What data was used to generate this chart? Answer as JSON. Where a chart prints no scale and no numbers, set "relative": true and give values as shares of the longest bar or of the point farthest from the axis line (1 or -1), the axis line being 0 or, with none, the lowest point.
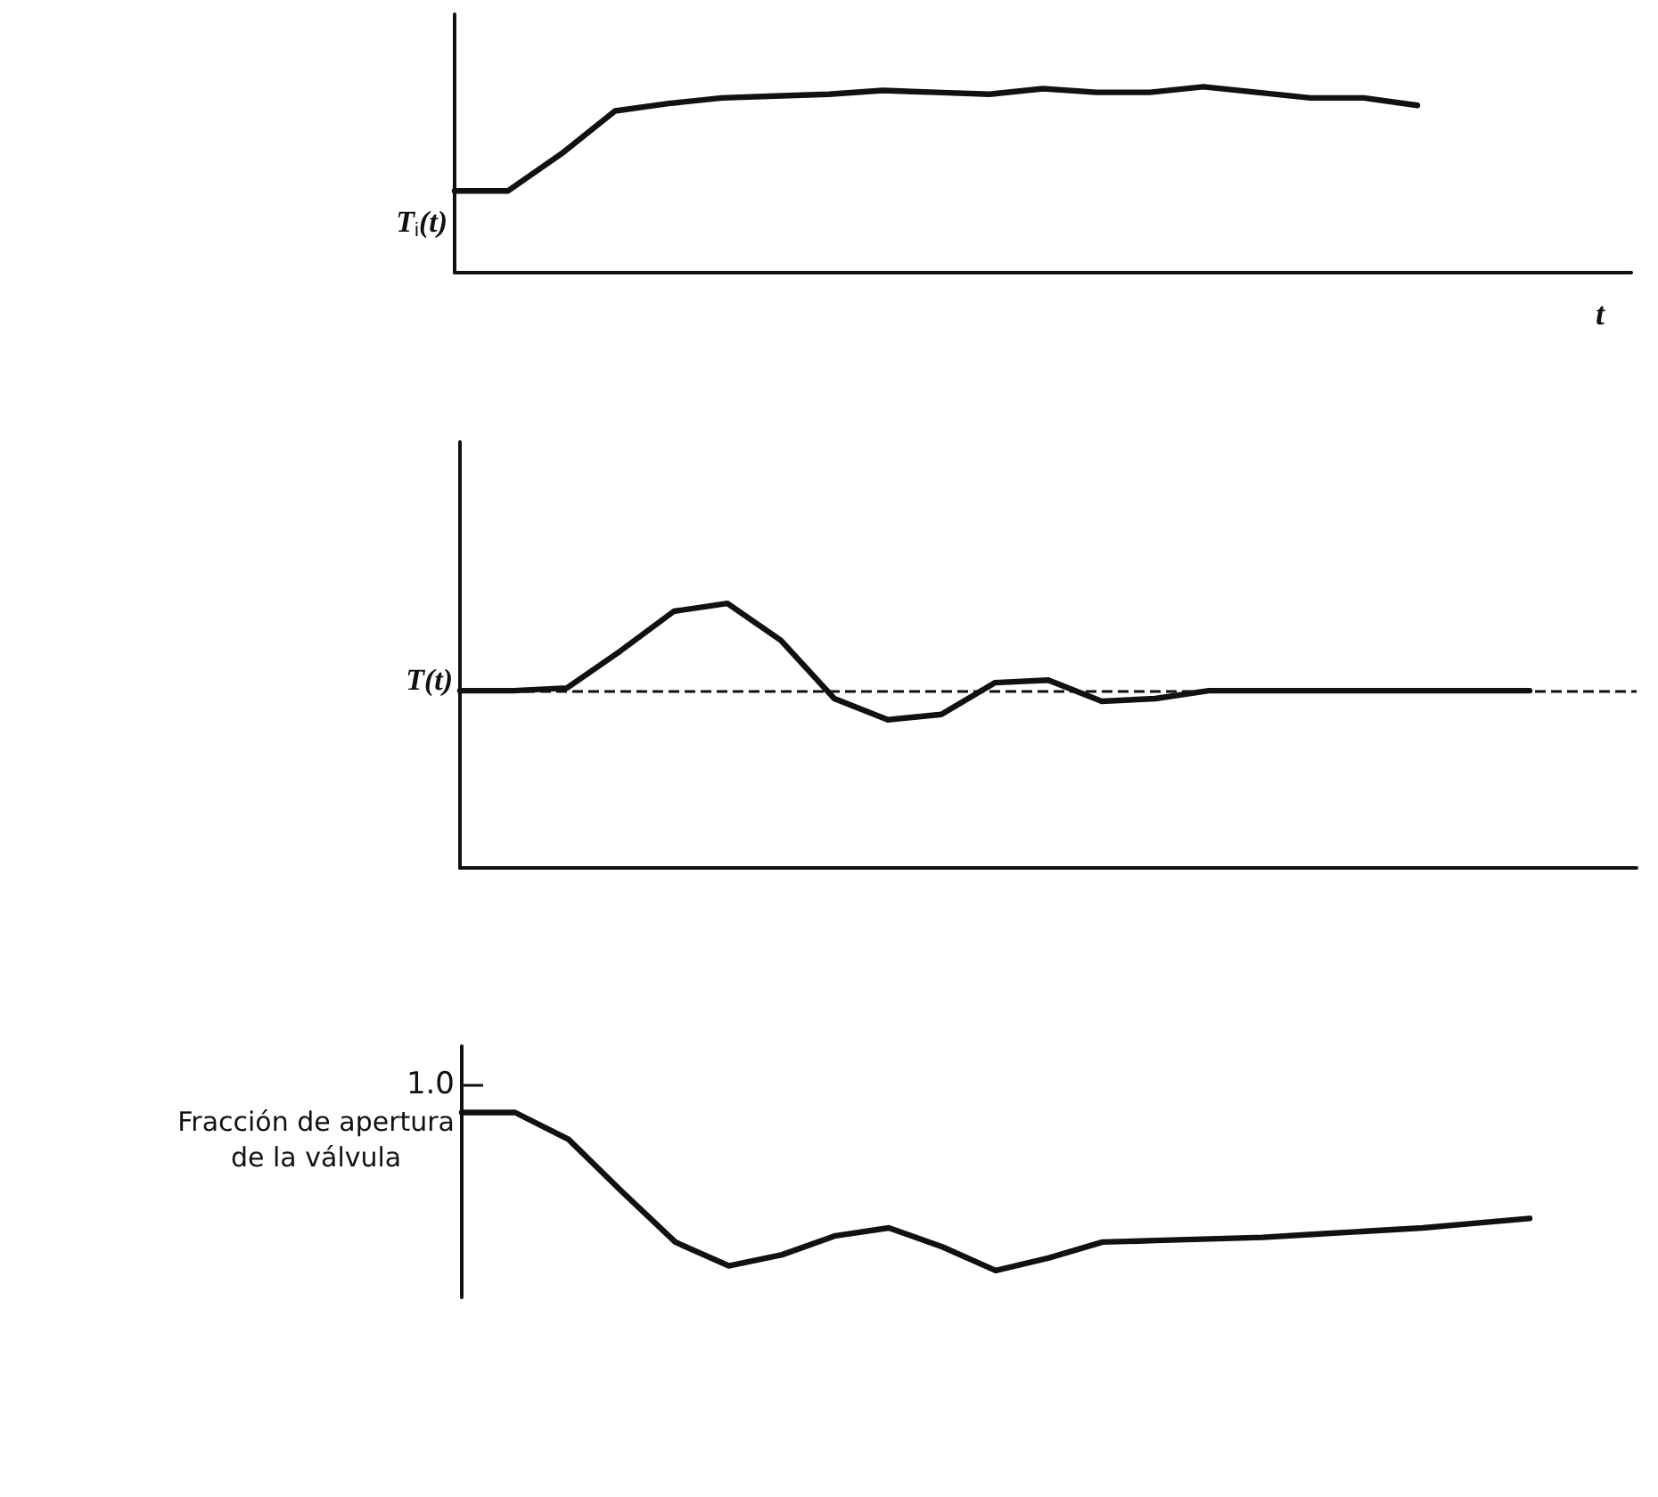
{
  "chart_data": [
    {
      "type": "line",
      "relative": true,
      "ylabel": "T$_{i}$(t)",
      "xlabel": "t",
      "grid": false,
      "marker": "none",
      "line_style": "solid",
      "categories": [
        null,
        null,
        null,
        null,
        null,
        null,
        null,
        null,
        null,
        null,
        null,
        null,
        null,
        null,
        null,
        null,
        null,
        null,
        null,
        null,
        null,
        null,
        null
      ],
      "series": [
        {
          "color": "#111111",
          "values": [
            0.44,
            0.44,
            0.64,
            0.87,
            0.91,
            0.94,
            0.95,
            0.96,
            0.98,
            0.97,
            0.96,
            0.99,
            0.97,
            0.97,
            1.0,
            0.97,
            0.94,
            0.94,
            0.9,
            null,
            null,
            null,
            null
          ]
        }
      ]
    },
    {
      "type": "line",
      "relative": true,
      "ylabel": "T(t)",
      "grid": false,
      "marker": "none",
      "line_style": "solid",
      "categories": [
        null,
        null,
        null,
        null,
        null,
        null,
        null,
        null,
        null,
        null,
        null,
        null,
        null,
        null,
        null,
        null,
        null,
        null,
        null,
        null,
        null,
        null,
        null
      ],
      "series": [
        {
          "color": "#111111",
          "values": [
            0.67,
            0.67,
            0.68,
            0.82,
            0.97,
            1.0,
            0.86,
            0.64,
            0.56,
            0.58,
            0.7,
            0.71,
            0.63,
            0.64,
            0.67,
            0.67,
            0.67,
            0.67,
            0.67,
            0.67,
            0.67,
            null,
            null
          ]
        }
      ],
      "ref_lines": [
        {
          "axis": "y",
          "value": 0.67,
          "color": "#111111",
          "line_style": "dashed"
        }
      ]
    },
    {
      "type": "line",
      "relative": true,
      "ylabel": "Fracción de apertura\nde la válvula",
      "grid": false,
      "marker": "none",
      "line_style": "solid",
      "categories": [
        null,
        null,
        null,
        null,
        null,
        null,
        null,
        null,
        null,
        null,
        null,
        null,
        null,
        null,
        null,
        null,
        null,
        null,
        null,
        null,
        null
      ],
      "series": [
        {
          "color": "#111111",
          "values": [
            1.0,
            1.0,
            0.83,
            0.5,
            0.18,
            0.03,
            0.1,
            0.22,
            0.27,
            0.15,
            0,
            0.08,
            0.18,
            0.19,
            0.2,
            0.21,
            0.23,
            0.25,
            0.27,
            0.3,
            0.33
          ]
        }
      ],
      "annotations": [
        "1.0"
      ]
    }
  ]
}
